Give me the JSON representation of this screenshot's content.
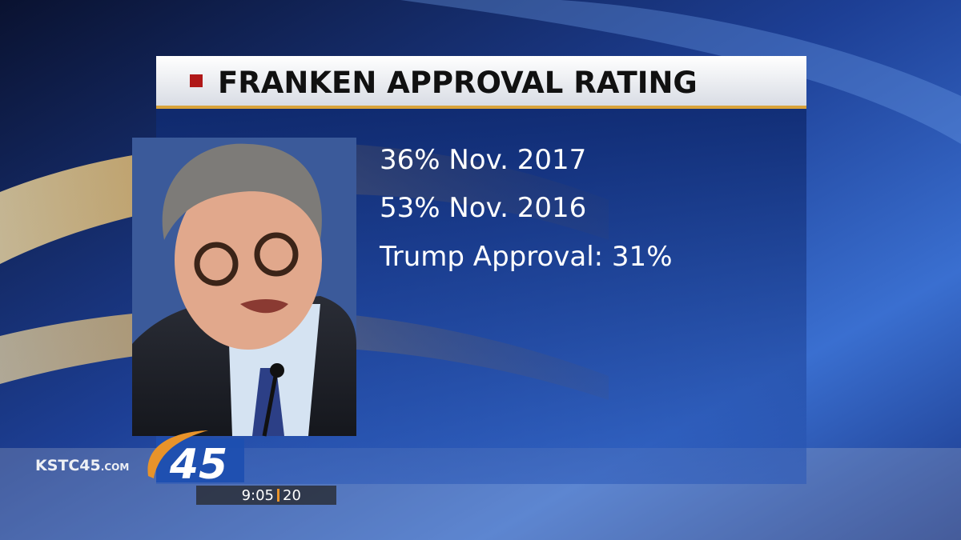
{
  "header": {
    "title": "FRANKEN APPROVAL RATING"
  },
  "stats": [
    "36% Nov. 2017",
    "53% Nov. 2016",
    "Trump Approval: 31%"
  ],
  "branding": {
    "site_name": "KSTC45",
    "site_suffix": ".COM",
    "channel": "45"
  },
  "clock": {
    "time": "9:05",
    "seconds": "20"
  }
}
